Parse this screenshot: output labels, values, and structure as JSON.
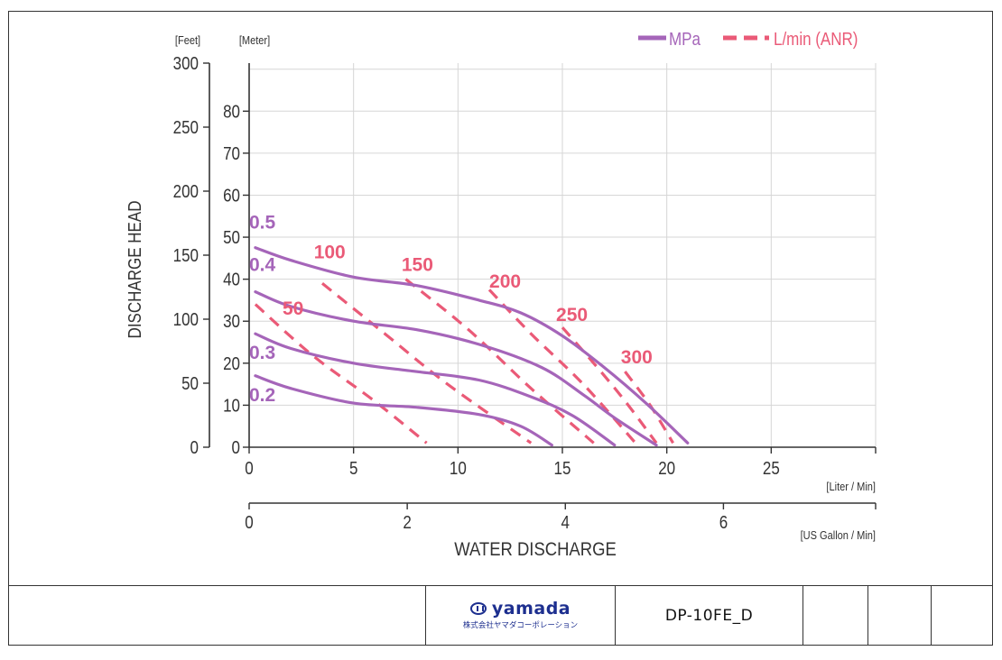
{
  "chart_data": {
    "type": "line",
    "legend": {
      "position": "top-right",
      "entries": [
        {
          "label": "MPa",
          "color": "#a565b9",
          "style": "solid"
        },
        {
          "label": "L/min (ANR)",
          "color": "#ea5a77",
          "style": "dashed"
        }
      ]
    },
    "ylabel": "DISCHARGE HEAD",
    "xlabel": "WATER DISCHARGE",
    "y_units": {
      "feet": "[Feet]",
      "meter": "[Meter]"
    },
    "x_units": {
      "liter": "[Liter / Min]",
      "gallon": "[US Gallon / Min]"
    },
    "x_liter_ticks": [
      0,
      5,
      10,
      15,
      20,
      25
    ],
    "x_gallon_ticks": [
      0,
      2,
      4,
      6
    ],
    "y_meter_ticks": [
      0,
      10,
      20,
      30,
      40,
      50,
      60,
      70,
      80
    ],
    "y_feet_ticks": [
      0,
      50,
      100,
      150,
      200,
      250,
      300
    ],
    "xlim": [
      0,
      30
    ],
    "ylim_meter": [
      0,
      91.44
    ],
    "grid": true,
    "series_pressure": [
      {
        "label": "0.5",
        "points": [
          [
            0.3,
            47.5
          ],
          [
            2,
            44.5
          ],
          [
            5,
            40.5
          ],
          [
            8,
            38.5
          ],
          [
            11,
            35
          ],
          [
            13,
            32
          ],
          [
            15,
            26.5
          ],
          [
            17,
            19
          ],
          [
            19,
            10.5
          ],
          [
            21,
            1
          ]
        ]
      },
      {
        "label": "0.4",
        "points": [
          [
            0.3,
            37
          ],
          [
            2,
            33.5
          ],
          [
            5,
            30
          ],
          [
            8,
            28
          ],
          [
            11,
            24.5
          ],
          [
            14,
            19
          ],
          [
            16,
            12.5
          ],
          [
            17.5,
            7
          ],
          [
            19.5,
            0.5
          ]
        ]
      },
      {
        "label": "0.3",
        "points": [
          [
            0.3,
            27
          ],
          [
            2,
            23.5
          ],
          [
            5,
            20
          ],
          [
            8,
            18
          ],
          [
            11,
            16
          ],
          [
            13.5,
            12
          ],
          [
            15.5,
            7.5
          ],
          [
            17.5,
            0.5
          ]
        ]
      },
      {
        "label": "0.2",
        "points": [
          [
            0.3,
            17
          ],
          [
            2,
            14
          ],
          [
            5,
            10.5
          ],
          [
            8,
            9.5
          ],
          [
            11,
            7.8
          ],
          [
            13,
            5
          ],
          [
            14.5,
            0.5
          ]
        ]
      }
    ],
    "series_flow": [
      {
        "label": "50",
        "points": [
          [
            0.3,
            34
          ],
          [
            3,
            22
          ],
          [
            6,
            11
          ],
          [
            8.5,
            1
          ]
        ]
      },
      {
        "label": "100",
        "points": [
          [
            3.5,
            39
          ],
          [
            6.5,
            27
          ],
          [
            9.5,
            15
          ],
          [
            13.5,
            1
          ]
        ]
      },
      {
        "label": "150",
        "points": [
          [
            7.5,
            40
          ],
          [
            10.5,
            28
          ],
          [
            13.5,
            14
          ],
          [
            16.5,
            1
          ]
        ]
      },
      {
        "label": "200",
        "points": [
          [
            11.5,
            37.5
          ],
          [
            13.5,
            27
          ],
          [
            16,
            15
          ],
          [
            18.5,
            1
          ]
        ]
      },
      {
        "label": "250",
        "points": [
          [
            15,
            28.5
          ],
          [
            16.5,
            20
          ],
          [
            18,
            11
          ],
          [
            19.5,
            1
          ]
        ]
      },
      {
        "label": "300",
        "points": [
          [
            18,
            18
          ],
          [
            19.2,
            10
          ],
          [
            20.3,
            1
          ]
        ]
      }
    ]
  },
  "titleblock": {
    "logo_name": "yamada",
    "logo_subtitle": "株式会社ヤマダコーポレーション",
    "model_code": "DP-10FE_D"
  }
}
